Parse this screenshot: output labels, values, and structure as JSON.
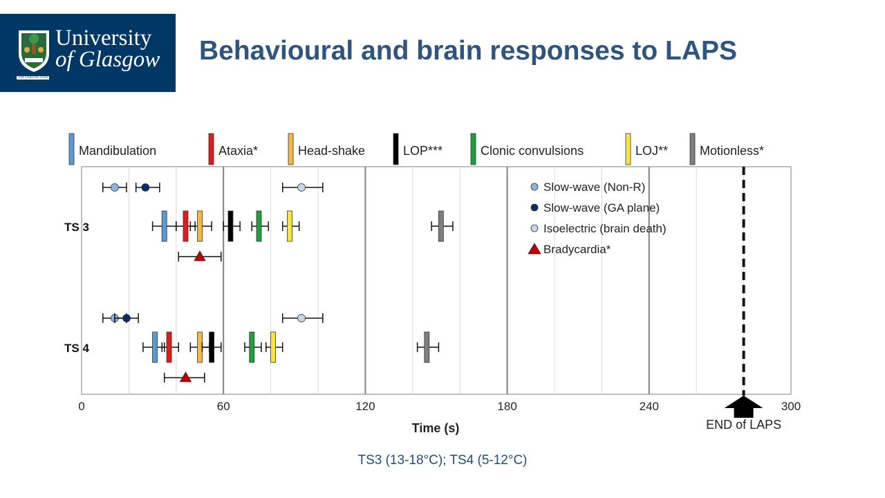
{
  "header": {
    "logo": {
      "line1": "University",
      "line2": "of Glasgow",
      "motto": "VIA VERITAS VITA"
    },
    "title": "Behavioural and brain responses to LAPS"
  },
  "footer": {
    "caption": "TS3 (13-18°C); TS4 (5-12°C)"
  },
  "chart_data": {
    "type": "scatter",
    "title": "",
    "xlabel": "Time (s)",
    "ylabel": "",
    "xlim": [
      0,
      300
    ],
    "x_ticks": [
      0,
      60,
      120,
      180,
      240,
      300
    ],
    "major_vlines": [
      60,
      120,
      180,
      240
    ],
    "minor_vlines": [
      20,
      40,
      80,
      100,
      140,
      160,
      200,
      220,
      260,
      280
    ],
    "groups": [
      {
        "name": "TS 3",
        "brain": [
          {
            "series": "slow_nonr",
            "x": 14,
            "lo": 9,
            "hi": 19
          },
          {
            "series": "slow_ga",
            "x": 27,
            "lo": 23,
            "hi": 33
          },
          {
            "series": "isoelectric",
            "x": 93,
            "lo": 85,
            "hi": 102
          }
        ],
        "behaviour": [
          {
            "series": "mandibulation",
            "x": 35,
            "lo": 30,
            "hi": 40
          },
          {
            "series": "ataxia",
            "x": 44,
            "lo": 40,
            "hi": 48
          },
          {
            "series": "headshake",
            "x": 50,
            "lo": 46,
            "hi": 55
          },
          {
            "series": "lop",
            "x": 63,
            "lo": 60,
            "hi": 67
          },
          {
            "series": "clonic",
            "x": 75,
            "lo": 72,
            "hi": 79
          },
          {
            "series": "loj",
            "x": 88,
            "lo": 85,
            "hi": 92
          },
          {
            "series": "motionless",
            "x": 152,
            "lo": 148,
            "hi": 157
          }
        ],
        "bradycardia": {
          "x": 50,
          "lo": 41,
          "hi": 59
        }
      },
      {
        "name": "TS 4",
        "brain": [
          {
            "series": "slow_nonr",
            "x": 14,
            "lo": 9,
            "hi": 19
          },
          {
            "series": "slow_ga",
            "x": 19,
            "lo": 14,
            "hi": 24
          },
          {
            "series": "isoelectric",
            "x": 93,
            "lo": 85,
            "hi": 102
          }
        ],
        "behaviour": [
          {
            "series": "mandibulation",
            "x": 31,
            "lo": 26,
            "hi": 35
          },
          {
            "series": "ataxia",
            "x": 37,
            "lo": 34,
            "hi": 41
          },
          {
            "series": "headshake",
            "x": 50,
            "lo": 46,
            "hi": 54
          },
          {
            "series": "lop",
            "x": 55,
            "lo": 51,
            "hi": 59
          },
          {
            "series": "clonic",
            "x": 72,
            "lo": 69,
            "hi": 76
          },
          {
            "series": "loj",
            "x": 81,
            "lo": 78,
            "hi": 85
          },
          {
            "series": "motionless",
            "x": 146,
            "lo": 142,
            "hi": 151
          }
        ],
        "bradycardia": {
          "x": 44,
          "lo": 35,
          "hi": 52
        }
      }
    ],
    "behaviour_series": [
      {
        "key": "mandibulation",
        "name": "Mandibulation",
        "color": "#5b9bd5"
      },
      {
        "key": "ataxia",
        "name": "Ataxia*",
        "color": "#e31a1c"
      },
      {
        "key": "headshake",
        "name": "Head-shake",
        "color": "#f4b942"
      },
      {
        "key": "lop",
        "name": "LOP***",
        "color": "#000000"
      },
      {
        "key": "clonic",
        "name": "Clonic convulsions",
        "color": "#1fa03c"
      },
      {
        "key": "loj",
        "name": "LOJ**",
        "color": "#f5e642"
      },
      {
        "key": "motionless",
        "name": "Motionless*",
        "color": "#7f7f7f"
      }
    ],
    "brain_series": [
      {
        "key": "slow_nonr",
        "name": "Slow-wave (Non-R)",
        "color": "#8db4e2",
        "marker": "circle"
      },
      {
        "key": "slow_ga",
        "name": "Slow-wave (GA plane)",
        "color": "#0b2a6b",
        "marker": "circle"
      },
      {
        "key": "isoelectric",
        "name": "Isoelectric (brain death)",
        "color": "#c5d6ea",
        "marker": "circle"
      },
      {
        "key": "bradycardia",
        "name": "Bradycardia*",
        "color": "#c00000",
        "marker": "triangle"
      }
    ],
    "end_marker": {
      "x": 280,
      "label": "END of LAPS"
    }
  }
}
